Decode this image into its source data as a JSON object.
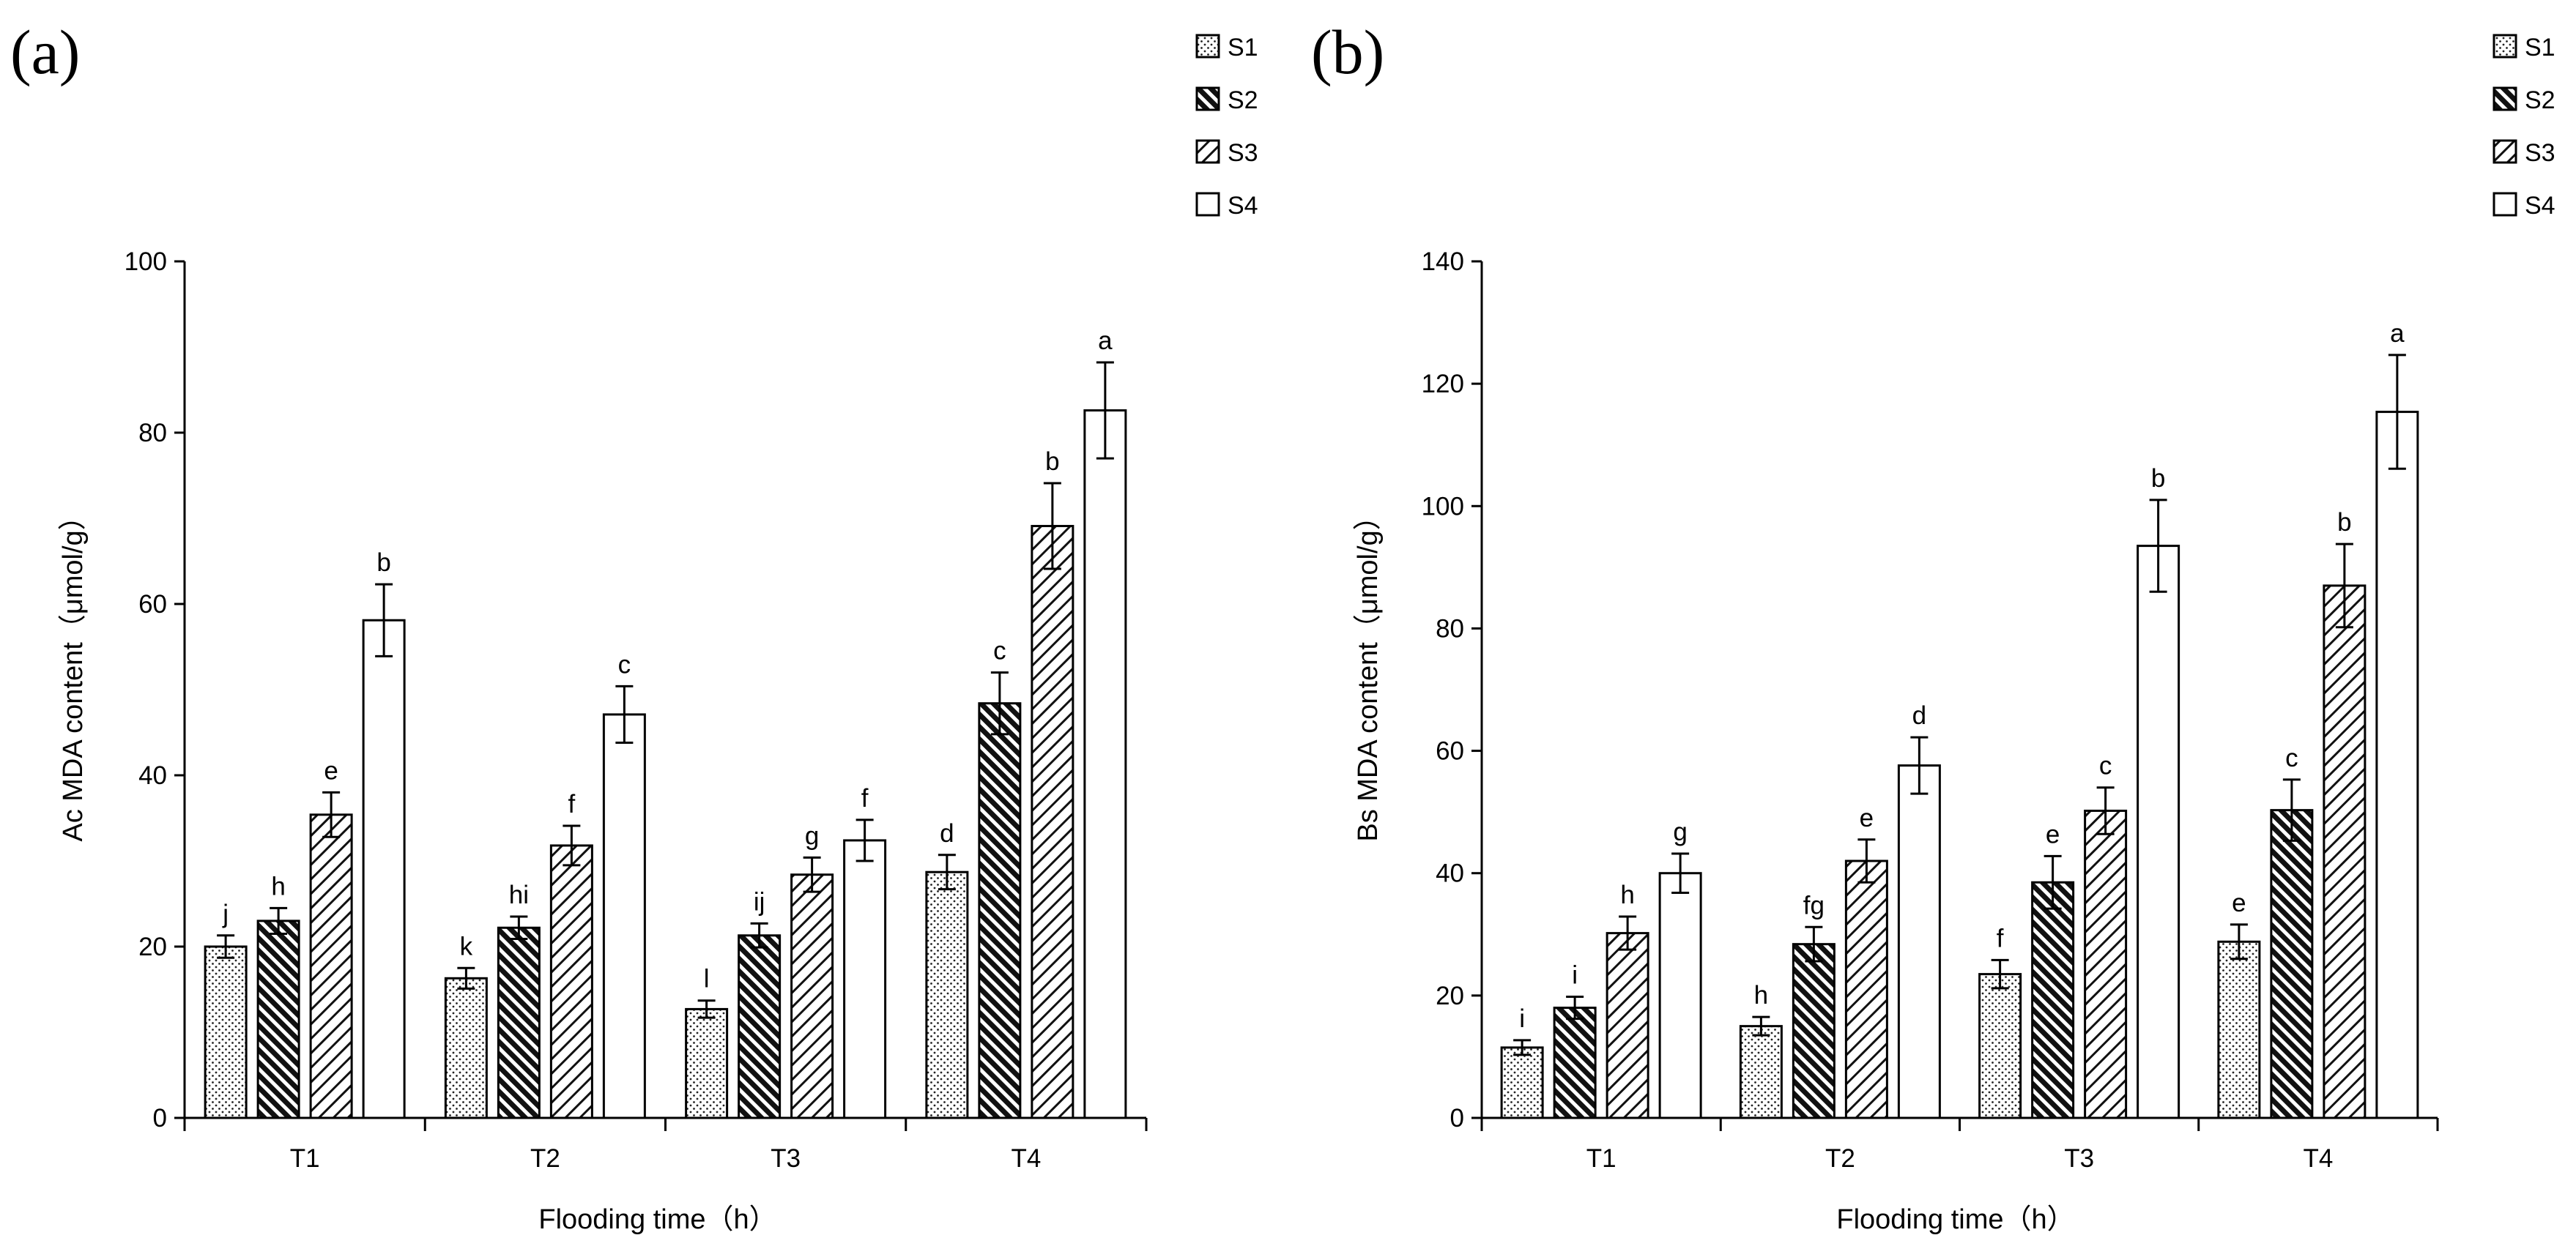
{
  "chart_data": [
    {
      "type": "bar",
      "panel_label": "(a)",
      "categories": [
        "T1",
        "T2",
        "T3",
        "T4"
      ],
      "series": [
        {
          "name": "S1",
          "pattern": "dots",
          "values": [
            20,
            16.3,
            12.7,
            28.7
          ],
          "errors": [
            1.3,
            1.2,
            1.0,
            2.0
          ],
          "letters": [
            "j",
            "k",
            "l",
            "d"
          ]
        },
        {
          "name": "S2",
          "pattern": "dense",
          "values": [
            23,
            22.2,
            21.3,
            48.4
          ],
          "errors": [
            1.5,
            1.3,
            1.4,
            3.6
          ],
          "letters": [
            "h",
            "hi",
            "ij",
            "c"
          ]
        },
        {
          "name": "S3",
          "pattern": "diagonal",
          "values": [
            35.4,
            31.8,
            28.4,
            69.1
          ],
          "errors": [
            2.6,
            2.3,
            2.0,
            5.0
          ],
          "letters": [
            "e",
            "f",
            "g",
            "b"
          ]
        },
        {
          "name": "S4",
          "pattern": "empty",
          "values": [
            58.1,
            47.1,
            32.4,
            82.6
          ],
          "errors": [
            4.2,
            3.3,
            2.4,
            5.6
          ],
          "letters": [
            "b",
            "c",
            "f",
            "a"
          ]
        }
      ],
      "xlabel": "Flooding time（h）",
      "ylabel": "Ac MDA content（μmol/g）",
      "ylim": [
        0,
        100
      ],
      "yticks": [
        0,
        20,
        40,
        60,
        80,
        100
      ],
      "legend": [
        "S1",
        "S2",
        "S3",
        "S4"
      ],
      "legend_position": "top-right",
      "grid": false
    },
    {
      "type": "bar",
      "panel_label": "(b)",
      "categories": [
        "T1",
        "T2",
        "T3",
        "T4"
      ],
      "series": [
        {
          "name": "S1",
          "pattern": "dots",
          "values": [
            11.5,
            15,
            23.5,
            28.8
          ],
          "errors": [
            1.2,
            1.5,
            2.3,
            2.8
          ],
          "letters": [
            "i",
            "h",
            "f",
            "e"
          ]
        },
        {
          "name": "S2",
          "pattern": "dense",
          "values": [
            18,
            28.4,
            38.5,
            50.3
          ],
          "errors": [
            1.8,
            2.8,
            4.3,
            5.0
          ],
          "letters": [
            "i",
            "fg",
            "e",
            "c"
          ]
        },
        {
          "name": "S3",
          "pattern": "diagonal",
          "values": [
            30.2,
            42,
            50.2,
            87
          ],
          "errors": [
            2.7,
            3.5,
            3.8,
            6.8
          ],
          "letters": [
            "h",
            "e",
            "c",
            "b"
          ]
        },
        {
          "name": "S4",
          "pattern": "empty",
          "values": [
            40,
            57.6,
            93.5,
            115.4
          ],
          "errors": [
            3.2,
            4.6,
            7.5,
            9.3
          ],
          "letters": [
            "g",
            "d",
            "b",
            "a"
          ]
        }
      ],
      "xlabel": "Flooding time（h）",
      "ylabel": "Bs MDA content（μmol/g）",
      "ylim": [
        0,
        140
      ],
      "yticks": [
        0,
        20,
        40,
        60,
        80,
        100,
        120,
        140
      ],
      "legend": [
        "S1",
        "S2",
        "S3",
        "S4"
      ],
      "legend_position": "top-right",
      "grid": false
    }
  ]
}
